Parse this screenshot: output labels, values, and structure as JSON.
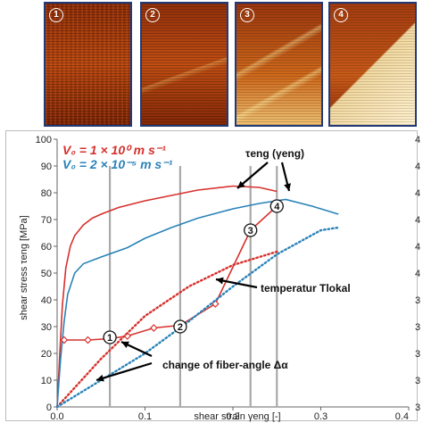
{
  "micrographs": [
    {
      "label": "1",
      "stage": 1
    },
    {
      "label": "2",
      "stage": 2
    },
    {
      "label": "3",
      "stage": 3
    },
    {
      "label": "4",
      "stage": 4
    }
  ],
  "chart_data": {
    "type": "line",
    "xlabel": "shear strain γeng [-]",
    "ylabel": "shear stress τeng [MPa]",
    "xlim": [
      0,
      0.4
    ],
    "ylim": [
      0,
      100
    ],
    "x_ticks": [
      "0.0",
      "0.1",
      "0.2",
      "0.3",
      "0.4"
    ],
    "y_ticks": [
      "0",
      "10",
      "20",
      "30",
      "40",
      "50",
      "60",
      "70",
      "80",
      "90",
      "100"
    ],
    "right_axis_tick_labels": [
      "3",
      "3",
      "3",
      "3",
      "3",
      "4",
      "4",
      "4",
      "4",
      "4",
      "4"
    ],
    "grid": false,
    "legend": [
      {
        "text": "V₀ = 1 × 10⁰   m s⁻¹",
        "color": "#d6312d"
      },
      {
        "text": "V₀ = 2 × 10⁻⁵   m s⁻¹",
        "color": "#2a82b8"
      }
    ],
    "legend_placement": "top-left",
    "series": [
      {
        "style": "solid",
        "color": "#d6312d",
        "x": [
          0,
          0.003,
          0.006,
          0.01,
          0.015,
          0.02,
          0.03,
          0.04,
          0.05,
          0.07,
          0.1,
          0.13,
          0.16,
          0.2,
          0.23,
          0.25
        ],
        "y": [
          0,
          20,
          38,
          52,
          60,
          64,
          68,
          70.5,
          72,
          74.5,
          77,
          79,
          81,
          82.5,
          82,
          80.5
        ]
      },
      {
        "style": "solid",
        "color": "#2a82b8",
        "x": [
          0,
          0.004,
          0.008,
          0.012,
          0.02,
          0.03,
          0.05,
          0.08,
          0.1,
          0.13,
          0.16,
          0.2,
          0.23,
          0.26,
          0.29,
          0.32
        ],
        "y": [
          0,
          18,
          32,
          42,
          50,
          53.5,
          56,
          59.5,
          63,
          67,
          70.5,
          74,
          76,
          77.5,
          75,
          72
        ]
      },
      {
        "style": "markers",
        "color": "#d6312d",
        "x": [
          0.008,
          0.035,
          0.06,
          0.08,
          0.11,
          0.14,
          0.18,
          0.22,
          0.25
        ],
        "y": [
          25,
          25,
          25.5,
          26.5,
          29.5,
          30.5,
          38.5,
          66,
          75
        ]
      },
      {
        "style": "dotted",
        "color": "#d6312d",
        "x": [
          0,
          0.05,
          0.1,
          0.15,
          0.2,
          0.25
        ],
        "y": [
          0,
          18,
          34,
          45,
          53,
          58
        ]
      },
      {
        "style": "dotted",
        "color": "#2a82b8",
        "x": [
          0,
          0.05,
          0.1,
          0.15,
          0.2,
          0.25,
          0.3,
          0.32
        ],
        "y": [
          0,
          10,
          20,
          32,
          45,
          57,
          66,
          67
        ]
      }
    ],
    "vertical_lines_x": [
      0.06,
      0.14,
      0.22,
      0.25
    ],
    "point_labels": [
      {
        "label": "1",
        "x": 0.06,
        "y": 26
      },
      {
        "label": "2",
        "x": 0.14,
        "y": 30
      },
      {
        "label": "3",
        "x": 0.22,
        "y": 66
      },
      {
        "label": "4",
        "x": 0.25,
        "y": 75
      }
    ],
    "annotations": {
      "stress_curve": "τeng (γeng)",
      "temperature": "temperatur  Tlokal",
      "fiber_angle": "change of fiber-angle  Δα"
    }
  }
}
